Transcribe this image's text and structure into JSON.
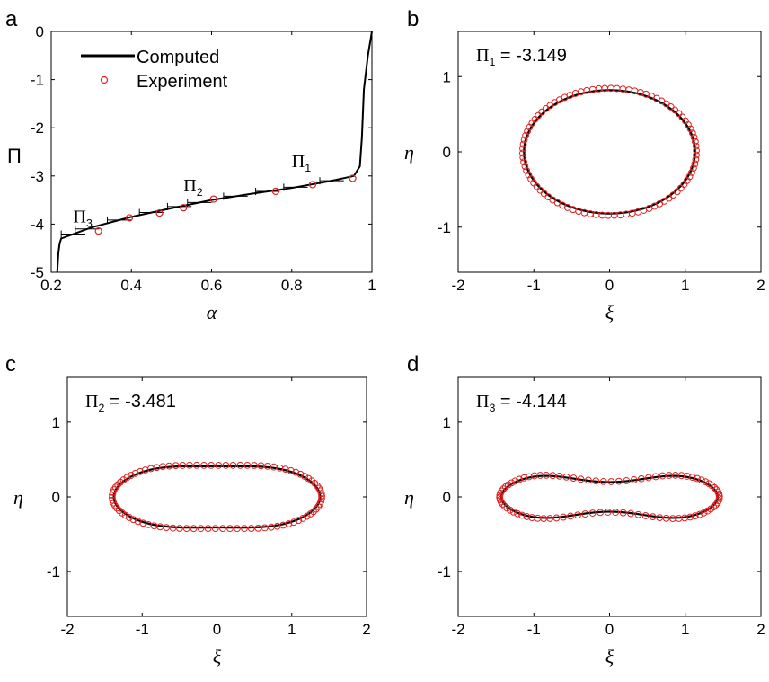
{
  "colors": {
    "computed": "#000000",
    "experiment": "#e02020",
    "axes": "#000000"
  },
  "chart_data": [
    {
      "panel": "a",
      "type": "line",
      "xlabel": "α",
      "ylabel": "Π",
      "xlim": [
        0.2,
        1
      ],
      "ylim": [
        -5,
        0
      ],
      "xticks": [
        "0.2",
        "0.4",
        "0.6",
        "0.8",
        "1"
      ],
      "yticks": [
        "-5",
        "-4",
        "-3",
        "-2",
        "-1",
        "0"
      ],
      "legend": {
        "placement": "top-left",
        "entries": [
          "Computed",
          "Experiment"
        ]
      },
      "annotations": [
        {
          "label": "Π",
          "sub": "1",
          "x": 0.8,
          "y": -2.82
        },
        {
          "label": "Π",
          "sub": "2",
          "x": 0.53,
          "y": -3.32
        },
        {
          "label": "Π",
          "sub": "3",
          "x": 0.255,
          "y": -3.96
        }
      ],
      "series": [
        {
          "name": "Computed",
          "x": [
            0.215,
            0.218,
            0.221,
            0.225,
            0.3,
            0.4,
            0.5,
            0.6,
            0.7,
            0.8,
            0.9,
            0.955,
            0.97,
            0.975,
            0.98,
            0.99,
            1.0
          ],
          "y": [
            -5.0,
            -4.6,
            -4.4,
            -4.3,
            -4.07,
            -3.85,
            -3.67,
            -3.5,
            -3.37,
            -3.25,
            -3.1,
            -3.0,
            -2.8,
            -2.2,
            -1.2,
            -0.5,
            0.0
          ]
        },
        {
          "name": "Experiment",
          "x": [
            0.318,
            0.395,
            0.47,
            0.53,
            0.605,
            0.76,
            0.852,
            0.952
          ],
          "y": [
            -4.144,
            -3.87,
            -3.77,
            -3.66,
            -3.481,
            -3.32,
            -3.18,
            -3.05
          ]
        }
      ]
    },
    {
      "panel": "b",
      "type": "line",
      "annotation": {
        "label": "Π",
        "sub": "1",
        "value": "-3.149"
      },
      "xlabel": "ξ",
      "ylabel": "η",
      "xlim": [
        -2,
        2
      ],
      "ylim": [
        -1.6,
        1.6
      ],
      "xticks": [
        "-2",
        "-1",
        "0",
        "1",
        "2"
      ],
      "yticks": [
        "-1",
        "0",
        "1"
      ],
      "shape": {
        "a": 1.13,
        "b": 0.82,
        "pinch": 0.0
      }
    },
    {
      "panel": "c",
      "type": "line",
      "annotation": {
        "label": "Π",
        "sub": "2",
        "value": "-3.481"
      },
      "xlabel": "ξ",
      "ylabel": "η",
      "xlim": [
        -2,
        2
      ],
      "ylim": [
        -1.6,
        1.6
      ],
      "xticks": [
        "-2",
        "-1",
        "0",
        "1",
        "2"
      ],
      "yticks": [
        "-1",
        "0",
        "1"
      ],
      "shape": {
        "a": 1.38,
        "b": 0.47,
        "pinch": 0.08
      }
    },
    {
      "panel": "d",
      "type": "line",
      "annotation": {
        "label": "Π",
        "sub": "3",
        "value": "-4.144"
      },
      "xlabel": "ξ",
      "ylabel": "η",
      "xlim": [
        -2,
        2
      ],
      "ylim": [
        -1.6,
        1.6
      ],
      "xticks": [
        "-2",
        "-1",
        "0",
        "1",
        "2"
      ],
      "yticks": [
        "-1",
        "0",
        "1"
      ],
      "shape": {
        "a": 1.43,
        "b": 0.35,
        "pinch": 0.27
      }
    }
  ]
}
